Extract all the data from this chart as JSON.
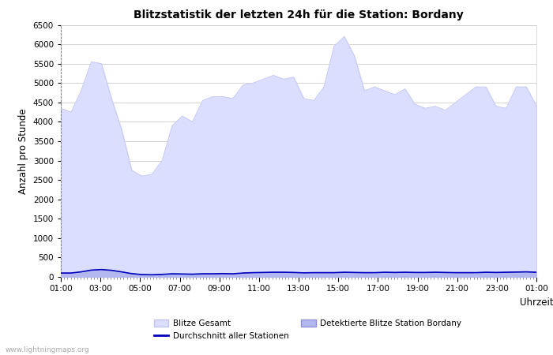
{
  "title": "Blitzstatistik der letzten 24h für die Station: Bordany",
  "xlabel": "Uhrzeit",
  "ylabel": "Anzahl pro Stunde",
  "watermark": "www.lightningmaps.org",
  "ylim": [
    0,
    6500
  ],
  "yticks": [
    0,
    500,
    1000,
    1500,
    2000,
    2500,
    3000,
    3500,
    4000,
    4500,
    5000,
    5500,
    6000,
    6500
  ],
  "xtick_labels": [
    "01:00",
    "03:00",
    "05:00",
    "07:00",
    "09:00",
    "11:00",
    "13:00",
    "15:00",
    "17:00",
    "19:00",
    "21:00",
    "23:00",
    "01:00"
  ],
  "bg_color": "#ffffff",
  "plot_bg_color": "#ffffff",
  "grid_color": "#cccccc",
  "area_gesamt_color": "#dcdeff",
  "area_gesamt_edge": "#c0c4ee",
  "area_station_color": "#b4b8f0",
  "area_station_edge": "#9090d8",
  "avg_line_color": "#0000bb",
  "blitze_gesamt": [
    4350,
    4250,
    4800,
    5550,
    5500,
    4600,
    3800,
    2750,
    2600,
    2650,
    3000,
    3900,
    4150,
    4000,
    4550,
    4650,
    4650,
    4600,
    4950,
    5000,
    5100,
    5200,
    5100,
    5150,
    4600,
    4550,
    4900,
    5950,
    6200,
    5700,
    4800,
    4900,
    4800,
    4700,
    4850,
    4450,
    4350,
    4400,
    4300,
    4500,
    4700,
    4900,
    4900,
    4400,
    4350,
    4900,
    4900,
    4400
  ],
  "blitze_station": [
    100,
    100,
    130,
    175,
    190,
    170,
    130,
    85,
    60,
    55,
    65,
    80,
    75,
    70,
    80,
    80,
    85,
    80,
    100,
    110,
    115,
    120,
    120,
    115,
    105,
    110,
    110,
    110,
    120,
    115,
    110,
    110,
    120,
    115,
    120,
    115,
    115,
    120,
    115,
    110,
    110,
    110,
    120,
    115,
    120,
    125,
    130,
    120
  ],
  "avg_line": [
    100,
    100,
    130,
    175,
    190,
    170,
    130,
    85,
    60,
    55,
    65,
    80,
    75,
    70,
    80,
    80,
    85,
    80,
    100,
    110,
    115,
    120,
    120,
    115,
    105,
    110,
    110,
    110,
    120,
    115,
    110,
    110,
    120,
    115,
    120,
    115,
    115,
    120,
    115,
    110,
    110,
    110,
    120,
    115,
    120,
    125,
    130,
    120
  ],
  "n_points": 48,
  "legend_gesamt_label": "Blitze Gesamt",
  "legend_station_label": "Detektierte Blitze Station Bordany",
  "legend_avg_label": "Durchschnitt aller Stationen"
}
